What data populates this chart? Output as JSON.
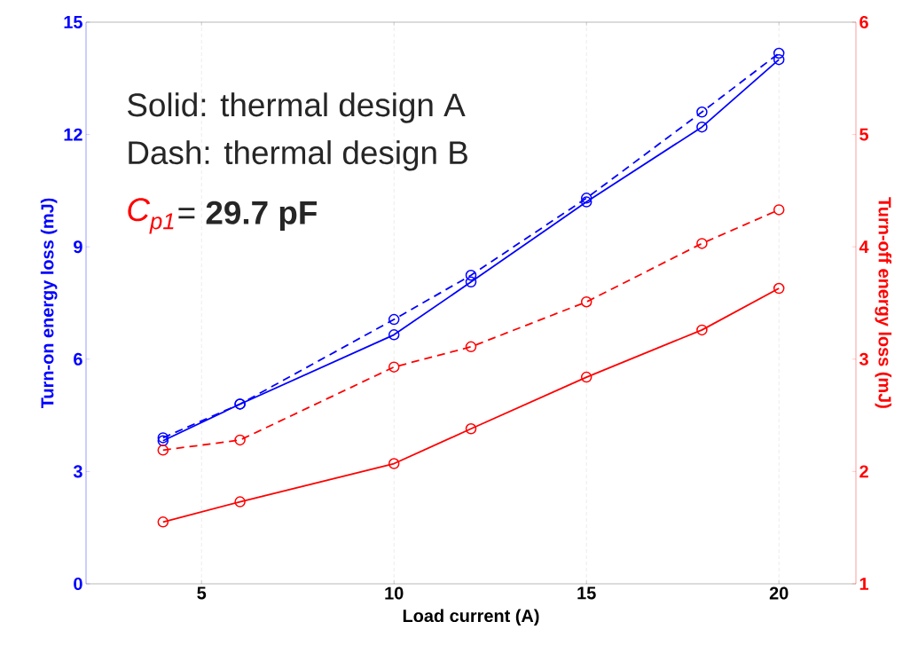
{
  "chart_data": {
    "type": "line",
    "xlabel": "Load current (A)",
    "ylabel": "Turn-on energy loss (mJ)",
    "y2label": "Turn-off energy loss (mJ)",
    "x": [
      4,
      6,
      10,
      12,
      15,
      18,
      20
    ],
    "series": [
      {
        "color": "#0000ff",
        "line_style": "solid",
        "values": [
          3.82,
          4.8,
          6.65,
          8.06,
          10.2,
          12.2,
          14.0
        ]
      },
      {
        "color": "#0000ff",
        "line_style": "dashed",
        "values": [
          3.9,
          4.8,
          7.06,
          8.24,
          10.3,
          12.6,
          14.17
        ]
      },
      {
        "color": "#ff0000",
        "line_style": "solid",
        "axis": "y2",
        "values": [
          1.55,
          1.73,
          2.07,
          2.38,
          2.84,
          3.26,
          3.63
        ]
      },
      {
        "color": "#ff0000",
        "line_style": "dashed",
        "axis": "y2",
        "values": [
          2.19,
          2.28,
          2.93,
          3.11,
          3.51,
          4.03,
          4.33
        ]
      }
    ],
    "marker": "circle",
    "grid": "x",
    "xlim": [
      2,
      22
    ],
    "xticks": [
      5,
      10,
      15,
      20
    ],
    "ylim": [
      0,
      15
    ],
    "yticks": [
      0,
      3,
      6,
      9,
      12,
      15
    ],
    "y2lim": [
      1,
      6
    ],
    "y2ticks": [
      1,
      2,
      3,
      4,
      5,
      6
    ],
    "annotations": [
      "Solid: thermal design A",
      "Dash: thermal design B",
      "C$_{p1}$",
      "= **29.7 pF**"
    ]
  }
}
